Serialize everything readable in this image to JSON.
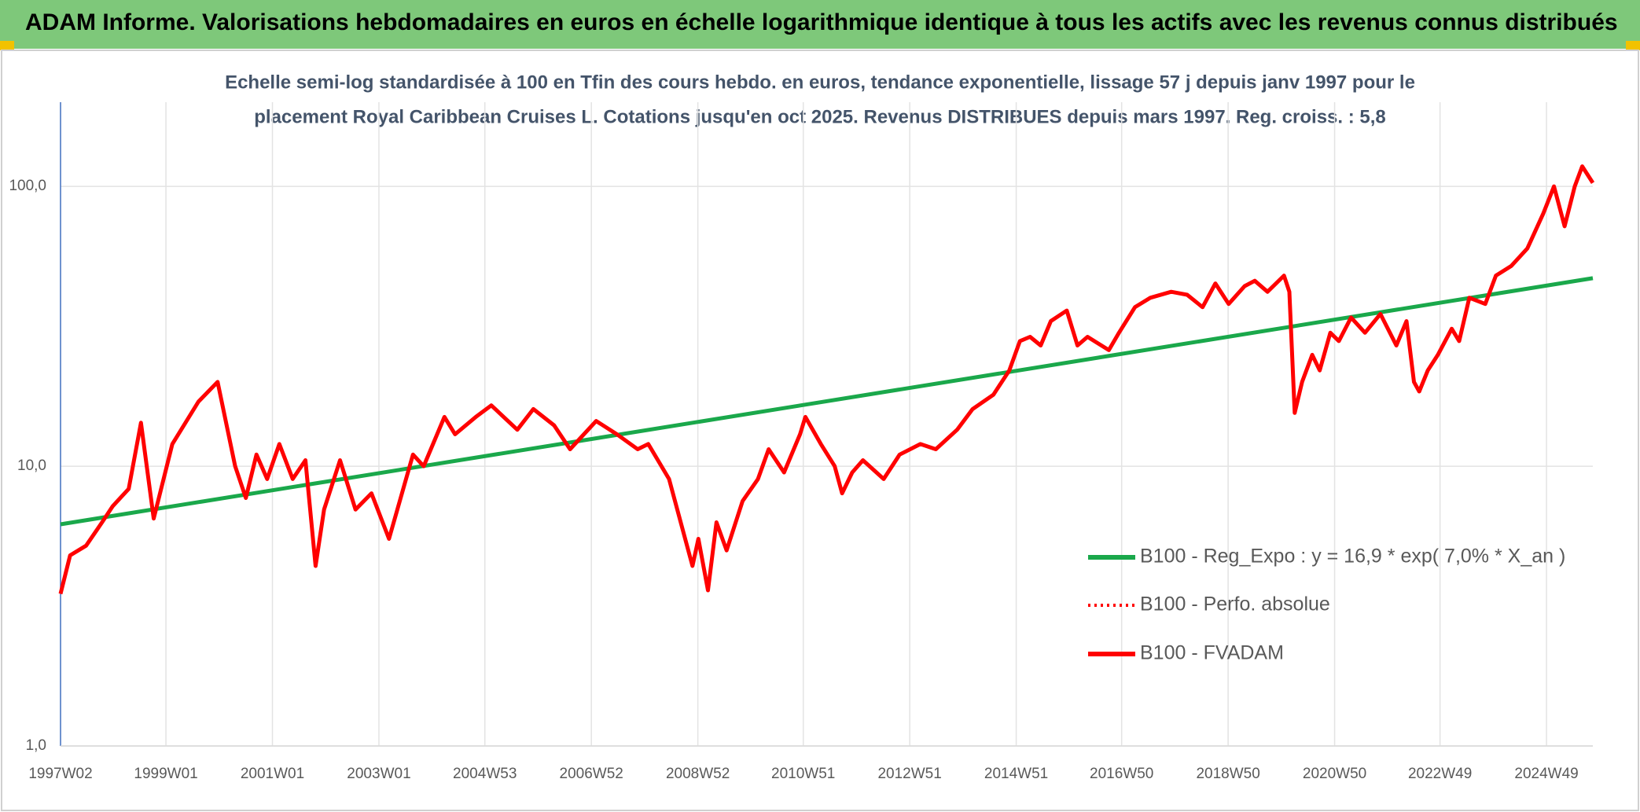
{
  "chart_data": {
    "type": "line",
    "title": "ADAM Informe. Valorisations hebdomadaires en euros en échelle logarithmique identique à tous les actifs avec les revenus connus distribués",
    "subtitle": [
      "Echelle semi-log standardisée à 100 en Tfin des cours hebdo. en euros, tendance exponentielle, lissage 57 j depuis janv 1997 pour le",
      "placement Royal Caribbean Cruises L. Cotations jusqu'en oct 2025. Revenus DISTRIBUES depuis mars 1997. Reg. croiss. : 5,8"
    ],
    "log_scale": true,
    "grid": true,
    "legend_position": "right",
    "xlim": [
      1997.02,
      2025.8
    ],
    "xticks": [
      {
        "value": 1997.02,
        "label": "1997W02"
      },
      {
        "value": 1999.0,
        "label": "1999W01"
      },
      {
        "value": 2001.0,
        "label": "2001W01"
      },
      {
        "value": 2003.0,
        "label": "2003W01"
      },
      {
        "value": 2004.99,
        "label": "2004W53"
      },
      {
        "value": 2006.99,
        "label": "2006W52"
      },
      {
        "value": 2008.99,
        "label": "2008W52"
      },
      {
        "value": 2010.97,
        "label": "2010W51"
      },
      {
        "value": 2012.97,
        "label": "2012W51"
      },
      {
        "value": 2014.97,
        "label": "2014W51"
      },
      {
        "value": 2016.95,
        "label": "2016W50"
      },
      {
        "value": 2018.95,
        "label": "2018W50"
      },
      {
        "value": 2020.95,
        "label": "2020W50"
      },
      {
        "value": 2022.93,
        "label": "2022W49"
      },
      {
        "value": 2024.93,
        "label": "2024W49"
      }
    ],
    "ylim": [
      1,
      200
    ],
    "yticks": [
      {
        "value": 1,
        "label": "1,0"
      },
      {
        "value": 10,
        "label": "10,0"
      },
      {
        "value": 100,
        "label": "100,0"
      }
    ],
    "series": [
      {
        "name": "B100 - Reg_Expo : y = 16,9 * exp( 7,0% *  X_an )",
        "color": "#1aa84b",
        "style": "solid",
        "x": [
          1997.02,
          2025.8
        ],
        "values": [
          6.2,
          47
        ]
      },
      {
        "name": "B100 - Perfo. absolue",
        "color": "#ff0000",
        "style": "dotted",
        "x": [
          1997.02,
          1997.2,
          1997.5,
          1997.8,
          1998.0,
          1998.3,
          1998.53,
          1998.77,
          1999.12,
          1999.61,
          1999.97,
          2000.3,
          2000.5,
          2000.7,
          2000.9,
          2001.13,
          2001.38,
          2001.62,
          2001.81,
          2001.97,
          2002.27,
          2002.56,
          2002.86,
          2003.19,
          2003.64,
          2003.84,
          2004.23,
          2004.43,
          2004.82,
          2005.11,
          2005.6,
          2005.9,
          2006.29,
          2006.59,
          2007.08,
          2007.47,
          2007.86,
          2008.06,
          2008.45,
          2008.89,
          2009.0,
          2009.18,
          2009.34,
          2009.53,
          2009.83,
          2010.12,
          2010.32,
          2010.61,
          2010.91,
          2011.01,
          2011.3,
          2011.56,
          2011.7,
          2011.89,
          2012.09,
          2012.48,
          2012.78,
          2013.17,
          2013.46,
          2013.86,
          2014.15,
          2014.54,
          2014.84,
          2015.04,
          2015.23,
          2015.43,
          2015.62,
          2015.92,
          2016.12,
          2016.31,
          2016.71,
          2016.9,
          2017.2,
          2017.49,
          2017.88,
          2018.18,
          2018.47,
          2018.71,
          2018.96,
          2019.26,
          2019.45,
          2019.69,
          2020.0,
          2020.1,
          2020.2,
          2020.34,
          2020.53,
          2020.67,
          2020.87,
          2021.03,
          2021.26,
          2021.52,
          2021.81,
          2022.11,
          2022.3,
          2022.44,
          2022.54,
          2022.7,
          2022.89,
          2023.15,
          2023.29,
          2023.48,
          2023.78,
          2023.98,
          2024.27,
          2024.57,
          2024.87,
          2025.07,
          2025.27,
          2025.46,
          2025.6,
          2025.8
        ],
        "values": [
          3.5,
          4.8,
          5.2,
          6.3,
          7.2,
          8.3,
          14.3,
          6.5,
          12,
          17,
          20,
          10,
          7.7,
          11,
          9,
          12,
          9,
          10.5,
          4.4,
          7,
          10.5,
          7,
          8,
          5.5,
          11,
          10,
          15,
          13,
          15,
          16.5,
          13.5,
          16,
          14,
          11.5,
          14.5,
          13,
          11.5,
          12,
          9,
          4.4,
          5.5,
          3.6,
          6.3,
          5,
          7.5,
          9,
          11.5,
          9.5,
          13,
          15,
          12,
          10,
          8,
          9.5,
          10.5,
          9,
          11,
          12,
          11.5,
          13.5,
          16,
          18,
          22,
          28,
          29,
          27,
          33,
          36,
          27,
          29,
          26,
          30,
          37,
          40,
          42,
          41,
          37,
          45,
          38,
          44,
          46,
          42,
          48,
          42,
          15.5,
          20,
          25,
          22,
          30,
          28,
          34,
          30,
          35,
          27,
          33,
          20,
          18.5,
          22,
          25,
          31,
          28,
          40,
          38,
          48,
          52,
          60,
          80,
          100,
          72,
          100,
          118,
          103
        ]
      },
      {
        "name": "B100 - FVADAM",
        "color": "#ff0000",
        "style": "solid",
        "x": [
          1997.02,
          1997.2,
          1997.5,
          1997.8,
          1998.0,
          1998.3,
          1998.53,
          1998.77,
          1999.12,
          1999.61,
          1999.97,
          2000.3,
          2000.5,
          2000.7,
          2000.9,
          2001.13,
          2001.38,
          2001.62,
          2001.81,
          2001.97,
          2002.27,
          2002.56,
          2002.86,
          2003.19,
          2003.64,
          2003.84,
          2004.23,
          2004.43,
          2004.82,
          2005.11,
          2005.6,
          2005.9,
          2006.29,
          2006.59,
          2007.08,
          2007.47,
          2007.86,
          2008.06,
          2008.45,
          2008.89,
          2009.0,
          2009.18,
          2009.34,
          2009.53,
          2009.83,
          2010.12,
          2010.32,
          2010.61,
          2010.91,
          2011.01,
          2011.3,
          2011.56,
          2011.7,
          2011.89,
          2012.09,
          2012.48,
          2012.78,
          2013.17,
          2013.46,
          2013.86,
          2014.15,
          2014.54,
          2014.84,
          2015.04,
          2015.23,
          2015.43,
          2015.62,
          2015.92,
          2016.12,
          2016.31,
          2016.71,
          2016.9,
          2017.2,
          2017.49,
          2017.88,
          2018.18,
          2018.47,
          2018.71,
          2018.96,
          2019.26,
          2019.45,
          2019.69,
          2020.0,
          2020.1,
          2020.2,
          2020.34,
          2020.53,
          2020.67,
          2020.87,
          2021.03,
          2021.26,
          2021.52,
          2021.81,
          2022.11,
          2022.3,
          2022.44,
          2022.54,
          2022.7,
          2022.89,
          2023.15,
          2023.29,
          2023.48,
          2023.78,
          2023.98,
          2024.27,
          2024.57,
          2024.87,
          2025.07,
          2025.27,
          2025.46,
          2025.6,
          2025.8
        ],
        "values": [
          3.5,
          4.8,
          5.2,
          6.3,
          7.2,
          8.3,
          14.3,
          6.5,
          12,
          17,
          20,
          10,
          7.7,
          11,
          9,
          12,
          9,
          10.5,
          4.4,
          7,
          10.5,
          7,
          8,
          5.5,
          11,
          10,
          15,
          13,
          15,
          16.5,
          13.5,
          16,
          14,
          11.5,
          14.5,
          13,
          11.5,
          12,
          9,
          4.4,
          5.5,
          3.6,
          6.3,
          5,
          7.5,
          9,
          11.5,
          9.5,
          13,
          15,
          12,
          10,
          8,
          9.5,
          10.5,
          9,
          11,
          12,
          11.5,
          13.5,
          16,
          18,
          22,
          28,
          29,
          27,
          33,
          36,
          27,
          29,
          26,
          30,
          37,
          40,
          42,
          41,
          37,
          45,
          38,
          44,
          46,
          42,
          48,
          42,
          15.5,
          20,
          25,
          22,
          30,
          28,
          34,
          30,
          35,
          27,
          33,
          20,
          18.5,
          22,
          25,
          31,
          28,
          40,
          38,
          48,
          52,
          60,
          80,
          100,
          72,
          100,
          118,
          103
        ]
      }
    ]
  }
}
